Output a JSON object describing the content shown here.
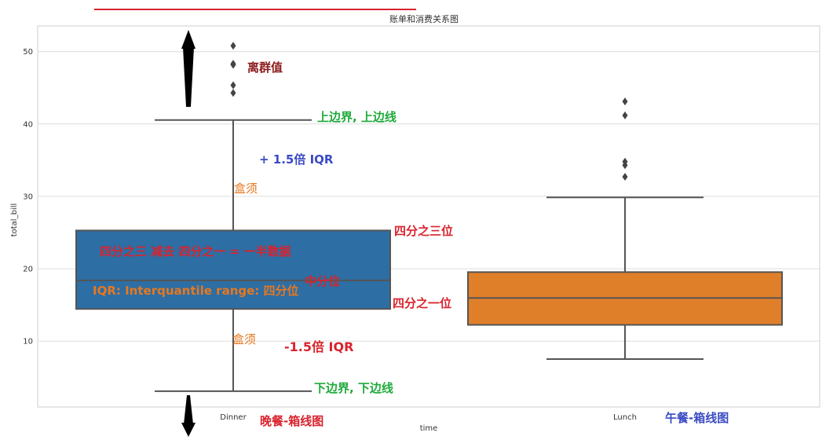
{
  "chart_data": {
    "type": "box",
    "title": "账单和消费关系图",
    "xlabel": "time",
    "ylabel": "total_bill",
    "categories": [
      "Dinner",
      "Lunch"
    ],
    "ylim": [
      0,
      53
    ],
    "yticks": [
      10,
      20,
      30,
      40,
      50
    ],
    "grid": true,
    "boxes": [
      {
        "category": "Dinner",
        "whisker_low": 3.07,
        "q1": 14.44,
        "median": 18.39,
        "q3": 25.28,
        "whisker_high": 40.55,
        "outliers": [
          44.3,
          45.35,
          48.17,
          48.33,
          50.81
        ],
        "color": "#2d6ea4"
      },
      {
        "category": "Lunch",
        "whisker_low": 7.51,
        "q1": 12.24,
        "median": 15.96,
        "q3": 19.53,
        "whisker_high": 29.85,
        "outliers": [
          32.7,
          34.3,
          34.8,
          41.19,
          43.11
        ],
        "color": "#e07f2a"
      }
    ]
  },
  "annotations": {
    "outlier": "离群值",
    "upper_bound": "上边界, 上边线",
    "plus_iqr": "+ 1.5倍 IQR",
    "whisker_top": "盒须",
    "q3_label": "四分之三位",
    "box_text": "四分之三  减去  四分之一  =  一半数据",
    "median_label": "中分位",
    "iqr_text": "IQR:  Interquantile range: 四分位",
    "q1_label": "四分之一位",
    "whisker_bottom": "盒须",
    "minus_iqr": "-1.5倍 IQR",
    "lower_bound": "下边界, 下边线",
    "dinner_caption": "晚餐-箱线图",
    "lunch_caption": "午餐-箱线图"
  },
  "colors": {
    "red": "#d9232d",
    "green": "#1faa3a",
    "blue": "#3a4bc4",
    "orange": "#e8781e",
    "darkred": "#8b1a1a"
  }
}
